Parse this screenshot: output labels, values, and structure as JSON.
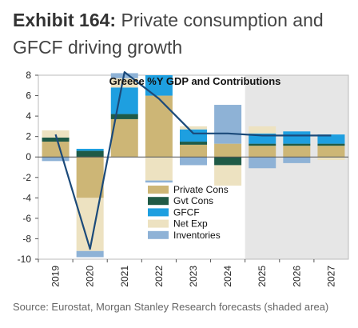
{
  "exhibit": {
    "label": "Exhibit 164:",
    "title": "Private consumption and GFCF driving growth"
  },
  "source": "Source: Eurostat, Morgan Stanley Research forecasts (shaded area)",
  "colors": {
    "private_cons": "#CDB676",
    "gvt_cons": "#1F5A46",
    "gfcf": "#1E9FE0",
    "net_exp": "#EDE2C1",
    "inventories": "#8EB2D6",
    "gdp_line": "#1B4A7A",
    "forecast_shade": "#E6E6E6"
  },
  "chart_data": {
    "type": "bar",
    "stacked": true,
    "title": "Greece %Y GDP and Contributions",
    "categories": [
      "2019",
      "2020",
      "2021",
      "2022",
      "2023",
      "2024",
      "2025",
      "2026",
      "2027"
    ],
    "ylim": [
      -10,
      8
    ],
    "yticks": [
      8,
      6,
      4,
      2,
      0,
      -2,
      -4,
      -6,
      -8,
      -10
    ],
    "forecast_shaded_from": "2025",
    "legend_position": "bottom-center",
    "series": [
      {
        "name": "Private Cons",
        "key": "private_cons",
        "values": [
          1.5,
          -4.0,
          3.7,
          6.0,
          1.2,
          1.3,
          1.1,
          1.1,
          1.1
        ]
      },
      {
        "name": "Gvt Cons",
        "key": "gvt_cons",
        "values": [
          0.4,
          0.6,
          0.5,
          0.0,
          0.3,
          -0.8,
          0.2,
          0.2,
          0.2
        ]
      },
      {
        "name": "GFCF",
        "key": "gfcf",
        "values": [
          0.0,
          0.2,
          2.6,
          2.0,
          1.2,
          0.0,
          1.0,
          1.2,
          0.9
        ]
      },
      {
        "name": "Net Exp",
        "key": "net_exp",
        "values": [
          0.7,
          -5.2,
          0.9,
          -2.3,
          0.3,
          -2.0,
          0.7,
          0.0,
          -0.3
        ]
      },
      {
        "name": "Inventories",
        "key": "inventories",
        "values": [
          -0.4,
          -0.6,
          0.5,
          -0.2,
          -0.8,
          3.8,
          -1.1,
          -0.6,
          0.0
        ]
      }
    ],
    "line": {
      "name": "GDP %Y",
      "values": [
        2.2,
        -9.0,
        8.3,
        5.7,
        2.3,
        2.3,
        2.1,
        2.1,
        2.1
      ]
    }
  }
}
